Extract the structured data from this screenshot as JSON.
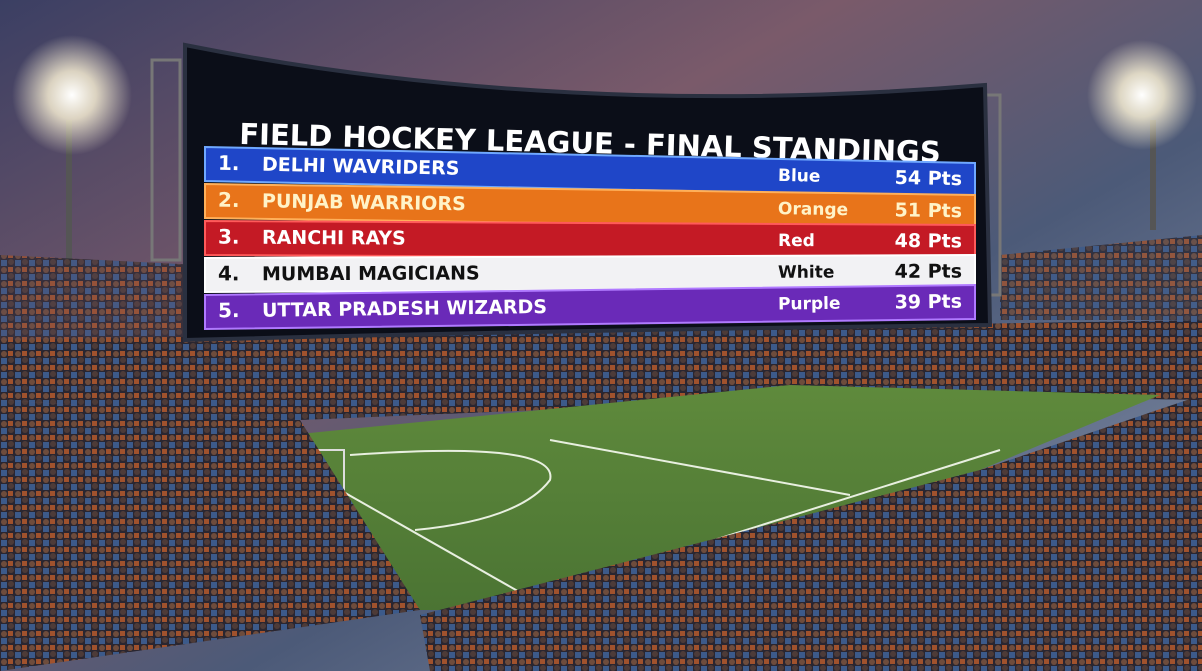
{
  "scoreboard": {
    "title": "FIELD HOCKEY LEAGUE - FINAL STANDINGS",
    "rows": [
      {
        "rank": "1.",
        "team": "DELHI WAVRIDERS",
        "color": "Blue",
        "points": "54 Pts"
      },
      {
        "rank": "2.",
        "team": "PUNJAB WARRIORS",
        "color": "Orange",
        "points": "51 Pts"
      },
      {
        "rank": "3.",
        "team": "RANCHI RAYS",
        "color": "Red",
        "points": "48 Pts"
      },
      {
        "rank": "4.",
        "team": "MUMBAI MAGICIANS",
        "color": "White",
        "points": "42 Pts"
      },
      {
        "rank": "5.",
        "team": "UTTAR PRADESH WIZARDS",
        "color": "Purple",
        "points": "39 Pts"
      }
    ]
  }
}
